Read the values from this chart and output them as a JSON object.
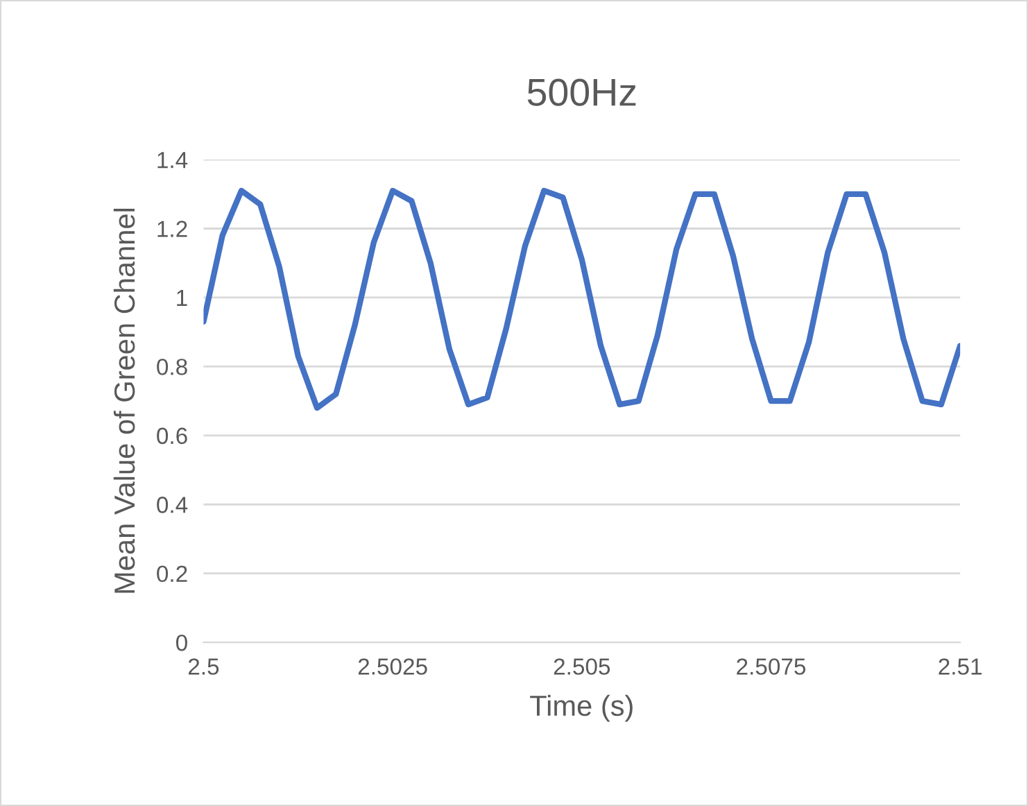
{
  "chart_data": {
    "type": "line",
    "title": "500Hz",
    "xlabel": "Time (s)",
    "ylabel": "Mean Value of Green Channel",
    "x": [
      2.5,
      2.50025,
      2.5005,
      2.50075,
      2.501,
      2.50125,
      2.5015,
      2.50175,
      2.502,
      2.50225,
      2.5025,
      2.50275,
      2.503,
      2.50325,
      2.5035,
      2.50375,
      2.504,
      2.50425,
      2.5045,
      2.50475,
      2.505,
      2.50525,
      2.5055,
      2.50575,
      2.506,
      2.50625,
      2.5065,
      2.50675,
      2.507,
      2.50725,
      2.5075,
      2.50775,
      2.508,
      2.50825,
      2.5085,
      2.50875,
      2.509,
      2.50925,
      2.5095,
      2.50975,
      2.51
    ],
    "series": [
      {
        "color": "#4472c4",
        "values": [
          0.93,
          1.18,
          1.31,
          1.27,
          1.09,
          0.83,
          0.68,
          0.72,
          0.92,
          1.16,
          1.31,
          1.28,
          1.1,
          0.85,
          0.69,
          0.71,
          0.91,
          1.15,
          1.31,
          1.29,
          1.11,
          0.86,
          0.69,
          0.7,
          0.89,
          1.14,
          1.3,
          1.3,
          1.12,
          0.88,
          0.7,
          0.7,
          0.87,
          1.13,
          1.3,
          1.3,
          1.13,
          0.88,
          0.7,
          0.69,
          0.86
        ]
      }
    ],
    "xlim": [
      2.5,
      2.51
    ],
    "xticks": [
      2.5,
      2.5025,
      2.505,
      2.5075,
      2.51
    ],
    "ylim": [
      0,
      1.4
    ],
    "yticks": [
      0,
      0.2,
      0.4,
      0.6,
      0.8,
      1,
      1.2,
      1.4
    ],
    "grid": "y",
    "legend": false,
    "marker": "none",
    "line_style": "solid"
  }
}
